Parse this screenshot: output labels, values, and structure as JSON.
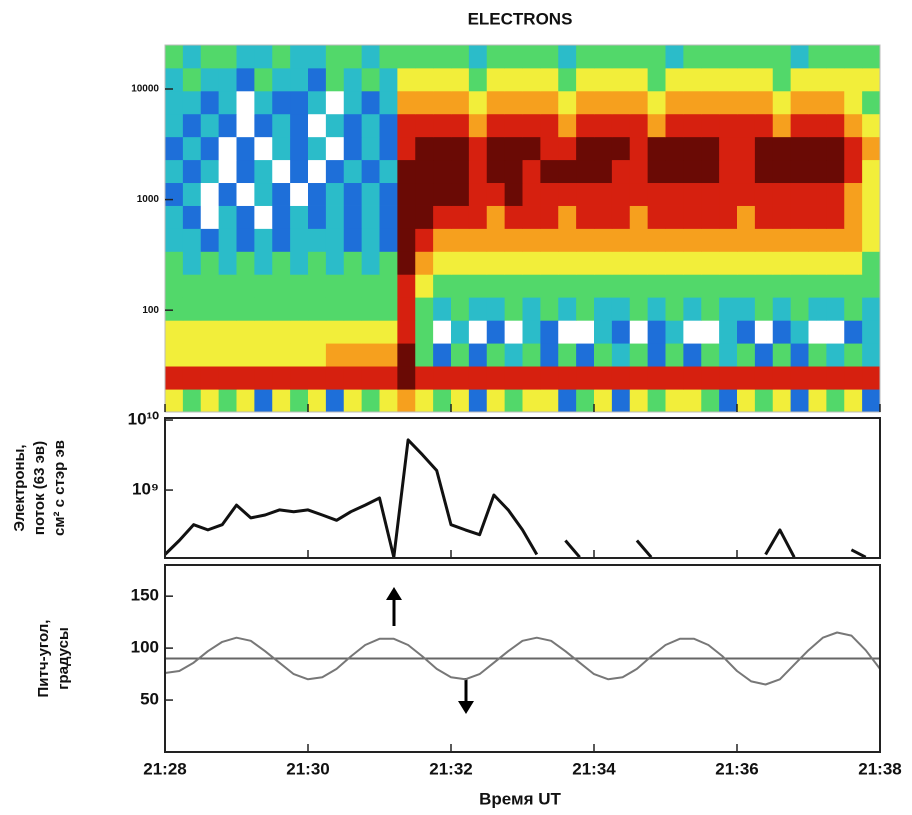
{
  "chart_data": [
    {
      "type": "heatmap",
      "title": "ELECTRONS",
      "xlim": [
        1288,
        1298
      ],
      "ylim": [
        12,
        25000
      ],
      "yscale": "log",
      "yticks": [
        100,
        1000,
        10000
      ],
      "x_edges": [
        1288,
        1288.25,
        1288.5,
        1288.75,
        1289,
        1289.25,
        1289.5,
        1289.75,
        1290,
        1290.25,
        1290.5,
        1290.75,
        1291,
        1291.25,
        1291.5,
        1291.75,
        1292,
        1292.25,
        1292.5,
        1292.75,
        1293,
        1293.25,
        1293.5,
        1293.75,
        1294,
        1294.25,
        1294.5,
        1294.75,
        1295,
        1295.25,
        1295.5,
        1295.75,
        1296,
        1296.25,
        1296.5,
        1296.75,
        1297,
        1297.25,
        1297.5,
        1297.75,
        1298
      ],
      "y_edges": [
        12,
        19.3,
        31.2,
        50.3,
        81,
        131,
        211,
        340,
        548,
        883,
        1424,
        2295,
        3700,
        5965,
        9615,
        15500,
        25000
      ],
      "colors": [
        "#ffffff",
        "#1e6fd9",
        "#2bbcc9",
        "#52d86a",
        "#f2ee3a",
        "#f6a01e",
        "#d6200f",
        "#6a0a05"
      ],
      "z": [
        [
          4,
          3,
          4,
          3,
          4,
          1,
          4,
          3,
          4,
          1,
          4,
          3,
          4,
          5,
          4,
          3,
          4,
          1,
          4,
          3,
          4,
          4,
          1,
          3,
          4,
          1,
          4,
          3,
          4,
          4,
          3,
          1,
          4,
          3,
          4,
          1,
          4,
          3,
          4,
          1
        ],
        [
          6,
          6,
          6,
          6,
          6,
          6,
          6,
          6,
          6,
          6,
          6,
          6,
          6,
          7,
          6,
          6,
          6,
          6,
          6,
          6,
          6,
          6,
          6,
          6,
          6,
          6,
          6,
          6,
          6,
          6,
          6,
          6,
          6,
          6,
          6,
          6,
          6,
          6,
          6,
          6
        ],
        [
          4,
          4,
          4,
          4,
          4,
          4,
          4,
          4,
          4,
          5,
          5,
          5,
          5,
          7,
          3,
          1,
          3,
          1,
          3,
          2,
          3,
          1,
          3,
          1,
          3,
          2,
          3,
          1,
          3,
          1,
          3,
          2,
          3,
          1,
          3,
          1,
          3,
          2,
          3,
          2
        ],
        [
          4,
          4,
          4,
          4,
          4,
          4,
          4,
          4,
          4,
          4,
          4,
          4,
          4,
          6,
          3,
          0,
          2,
          0,
          1,
          0,
          2,
          1,
          0,
          0,
          2,
          1,
          0,
          1,
          2,
          0,
          0,
          2,
          1,
          0,
          1,
          2,
          0,
          0,
          1,
          2
        ],
        [
          3,
          3,
          3,
          3,
          3,
          3,
          3,
          3,
          3,
          3,
          3,
          3,
          3,
          6,
          3,
          2,
          3,
          2,
          2,
          3,
          2,
          3,
          2,
          3,
          2,
          2,
          3,
          2,
          3,
          2,
          3,
          2,
          2,
          3,
          2,
          3,
          2,
          2,
          3,
          2
        ],
        [
          3,
          3,
          3,
          3,
          3,
          3,
          3,
          3,
          3,
          3,
          3,
          3,
          3,
          6,
          4,
          3,
          3,
          3,
          3,
          3,
          3,
          3,
          3,
          3,
          3,
          3,
          3,
          3,
          3,
          3,
          3,
          3,
          3,
          3,
          3,
          3,
          3,
          3,
          3,
          3
        ],
        [
          3,
          2,
          3,
          2,
          3,
          2,
          3,
          2,
          3,
          2,
          3,
          2,
          3,
          7,
          5,
          4,
          4,
          4,
          4,
          4,
          4,
          4,
          4,
          4,
          4,
          4,
          4,
          4,
          4,
          4,
          4,
          4,
          4,
          4,
          4,
          4,
          4,
          4,
          4,
          3
        ],
        [
          2,
          2,
          1,
          2,
          1,
          2,
          1,
          2,
          2,
          2,
          1,
          2,
          1,
          7,
          6,
          5,
          5,
          5,
          5,
          5,
          5,
          5,
          5,
          5,
          5,
          5,
          5,
          5,
          5,
          5,
          5,
          5,
          5,
          5,
          5,
          5,
          5,
          5,
          5,
          4
        ],
        [
          2,
          1,
          0,
          2,
          1,
          0,
          1,
          2,
          1,
          2,
          1,
          2,
          1,
          7,
          7,
          6,
          6,
          6,
          5,
          6,
          6,
          6,
          5,
          6,
          6,
          6,
          5,
          6,
          6,
          6,
          6,
          6,
          5,
          6,
          6,
          6,
          6,
          6,
          5,
          4
        ],
        [
          1,
          2,
          0,
          1,
          0,
          2,
          1,
          0,
          1,
          2,
          1,
          2,
          1,
          7,
          7,
          7,
          7,
          6,
          6,
          7,
          6,
          6,
          6,
          6,
          6,
          6,
          6,
          6,
          6,
          6,
          6,
          6,
          6,
          6,
          6,
          6,
          6,
          6,
          5,
          4
        ],
        [
          2,
          1,
          2,
          0,
          1,
          2,
          0,
          1,
          0,
          1,
          2,
          1,
          2,
          7,
          7,
          7,
          7,
          6,
          7,
          7,
          6,
          7,
          7,
          7,
          7,
          6,
          6,
          7,
          7,
          7,
          7,
          6,
          6,
          7,
          7,
          7,
          7,
          7,
          6,
          4
        ],
        [
          1,
          2,
          1,
          0,
          1,
          0,
          2,
          1,
          2,
          0,
          1,
          2,
          1,
          6,
          7,
          7,
          7,
          6,
          7,
          7,
          7,
          6,
          6,
          7,
          7,
          7,
          6,
          7,
          7,
          7,
          7,
          6,
          6,
          7,
          7,
          7,
          7,
          7,
          6,
          5
        ],
        [
          2,
          1,
          2,
          1,
          0,
          1,
          2,
          1,
          0,
          2,
          1,
          2,
          1,
          6,
          6,
          6,
          6,
          5,
          6,
          6,
          6,
          6,
          5,
          6,
          6,
          6,
          6,
          5,
          6,
          6,
          6,
          6,
          6,
          6,
          5,
          6,
          6,
          6,
          5,
          4
        ],
        [
          2,
          2,
          1,
          2,
          0,
          2,
          1,
          1,
          2,
          0,
          2,
          1,
          2,
          5,
          5,
          5,
          5,
          4,
          5,
          5,
          5,
          5,
          4,
          5,
          5,
          5,
          5,
          4,
          5,
          5,
          5,
          5,
          5,
          5,
          4,
          5,
          5,
          5,
          4,
          3
        ],
        [
          2,
          3,
          2,
          2,
          1,
          3,
          2,
          2,
          1,
          3,
          2,
          3,
          2,
          4,
          4,
          4,
          4,
          3,
          4,
          4,
          4,
          4,
          3,
          4,
          4,
          4,
          4,
          3,
          4,
          4,
          4,
          4,
          4,
          4,
          3,
          4,
          4,
          4,
          4,
          4
        ],
        [
          3,
          2,
          3,
          3,
          2,
          2,
          3,
          2,
          2,
          3,
          3,
          2,
          3,
          3,
          3,
          3,
          3,
          2,
          3,
          3,
          3,
          3,
          2,
          3,
          3,
          3,
          3,
          3,
          2,
          3,
          3,
          3,
          3,
          3,
          3,
          2,
          3,
          3,
          3,
          3
        ]
      ]
    },
    {
      "type": "line",
      "ylabel": [
        "Электроны,",
        "поток (63 эв)",
        "см² с стэр эв"
      ],
      "xlim": [
        1288,
        1298
      ],
      "ylim": [
        107000000.0,
        10700000000.0
      ],
      "yscale": "log",
      "yticks": [
        {
          "value": 1000000000.0,
          "label": "10⁹"
        },
        {
          "value": 10000000000.0,
          "label": "10¹⁰"
        }
      ],
      "color": "#111111",
      "x": [
        1288,
        1288.2,
        1288.4,
        1288.6,
        1288.8,
        1289,
        1289.2,
        1289.4,
        1289.6,
        1289.8,
        1290,
        1290.2,
        1290.4,
        1290.6,
        1290.8,
        1291,
        1291.2,
        1291.4,
        1291.6,
        1291.8,
        1292,
        1292.2,
        1292.4,
        1292.6,
        1292.8,
        1293,
        1293.2,
        1293.4,
        1293.6,
        1293.8,
        1294,
        1294.2,
        1294.4,
        1294.6,
        1294.8,
        1295,
        1295.2,
        1295.4,
        1295.6,
        1295.8,
        1296,
        1296.2,
        1296.4,
        1296.6,
        1296.8,
        1297,
        1297.2,
        1297.4,
        1297.6,
        1297.8,
        1298
      ],
      "values": [
        120000000.0,
        190000000.0,
        320000000.0,
        270000000.0,
        320000000.0,
        610000000.0,
        400000000.0,
        440000000.0,
        520000000.0,
        490000000.0,
        520000000.0,
        440000000.0,
        370000000.0,
        490000000.0,
        610000000.0,
        770000000.0,
        110000000.0,
        5200000000.0,
        3200000000.0,
        1900000000.0,
        320000000.0,
        270000000.0,
        230000000.0,
        850000000.0,
        520000000.0,
        270000000.0,
        120000000.0,
        null,
        190000000.0,
        110000000.0,
        null,
        null,
        null,
        190000000.0,
        110000000.0,
        null,
        null,
        null,
        null,
        null,
        null,
        null,
        120000000.0,
        270000000.0,
        110000000.0,
        null,
        null,
        null,
        140000000.0,
        110000000.0,
        null
      ]
    },
    {
      "type": "line",
      "ylabel": [
        "Питч-угол,",
        "градусы"
      ],
      "xlabel": "Время UT",
      "xlim": [
        1288,
        1298
      ],
      "xticks": [
        {
          "value": 1288,
          "label": "21:28"
        },
        {
          "value": 1290,
          "label": "21:30"
        },
        {
          "value": 1292,
          "label": "21:32"
        },
        {
          "value": 1294,
          "label": "21:34"
        },
        {
          "value": 1296,
          "label": "21:36"
        },
        {
          "value": 1298,
          "label": "21:38"
        }
      ],
      "ylim": [
        0,
        180
      ],
      "yticks": [
        50,
        100,
        150
      ],
      "hline": 90,
      "color": "#777777",
      "x": [
        1288,
        1288.2,
        1288.4,
        1288.6,
        1288.8,
        1289,
        1289.2,
        1289.4,
        1289.6,
        1289.8,
        1290,
        1290.2,
        1290.4,
        1290.6,
        1290.8,
        1291,
        1291.2,
        1291.4,
        1291.6,
        1291.8,
        1292,
        1292.2,
        1292.4,
        1292.6,
        1292.8,
        1293,
        1293.2,
        1293.4,
        1293.6,
        1293.8,
        1294,
        1294.2,
        1294.4,
        1294.6,
        1294.8,
        1295,
        1295.2,
        1295.4,
        1295.6,
        1295.8,
        1296,
        1296.2,
        1296.4,
        1296.6,
        1296.8,
        1297,
        1297.2,
        1297.4,
        1297.6,
        1297.8,
        1298
      ],
      "values": [
        76,
        78,
        86,
        97,
        106,
        110,
        107,
        97,
        86,
        75,
        70,
        72,
        80,
        92,
        103,
        109,
        109,
        103,
        92,
        80,
        72,
        70,
        75,
        86,
        97,
        107,
        110,
        107,
        97,
        86,
        75,
        70,
        72,
        80,
        92,
        103,
        109,
        109,
        103,
        92,
        78,
        68,
        65,
        70,
        84,
        98,
        110,
        115,
        112,
        98,
        80
      ]
    }
  ]
}
